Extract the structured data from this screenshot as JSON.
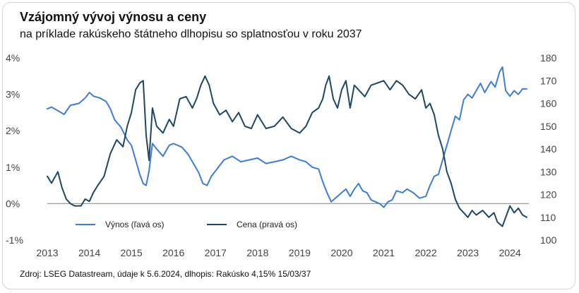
{
  "header": {
    "title": "Vzájomný vývoj výnosu a ceny",
    "subtitle": "na príklade rakúskeho štátneho dlhopisu so splatnosťou v roku 2037"
  },
  "footer": {
    "source": "Zdroj: LSEG Datastream, údaje k 5.6.2024, dlhopis: Rakúsko 4,15% 15/03/37"
  },
  "colors": {
    "yield": "#3b7dd8",
    "price": "#1e4763",
    "zero_line": "#9a9a9a"
  },
  "chart_data": {
    "type": "line",
    "title": "Vzájomný vývoj výnosu a ceny",
    "subtitle": "na príklade rakúskeho štátneho dlhopisu so splatnosťou v roku 2037",
    "x_ticks": [
      "2013",
      "2014",
      "2015",
      "2016",
      "2017",
      "2018",
      "2019",
      "2020",
      "2021",
      "2022",
      "2023",
      "2024"
    ],
    "x_range": [
      2013,
      2024.45
    ],
    "y_left": {
      "range": [
        -1,
        4
      ],
      "ticks": [
        "-1%",
        "0%",
        "1%",
        "2%",
        "3%",
        "4%"
      ]
    },
    "y_right": {
      "range": [
        100,
        180
      ],
      "ticks": [
        "100",
        "110",
        "120",
        "130",
        "140",
        "150",
        "160",
        "170",
        "180"
      ]
    },
    "legend": {
      "placement": "bottom-left",
      "entries": [
        "Výnos (ľavá os)",
        "Cena (pravá os)"
      ]
    },
    "grid": false,
    "series": [
      {
        "name": "Výnos (ľavá os)",
        "axis": "left",
        "x": [
          2013.0,
          2013.1,
          2013.25,
          2013.4,
          2013.55,
          2013.75,
          2013.9,
          2014.0,
          2014.1,
          2014.25,
          2014.4,
          2014.5,
          2014.6,
          2014.75,
          2014.9,
          2015.0,
          2015.1,
          2015.2,
          2015.28,
          2015.35,
          2015.42,
          2015.5,
          2015.6,
          2015.75,
          2015.9,
          2016.0,
          2016.2,
          2016.35,
          2016.5,
          2016.6,
          2016.7,
          2016.8,
          2016.9,
          2017.0,
          2017.2,
          2017.4,
          2017.6,
          2017.8,
          2018.0,
          2018.2,
          2018.4,
          2018.6,
          2018.8,
          2019.0,
          2019.15,
          2019.3,
          2019.45,
          2019.55,
          2019.65,
          2019.75,
          2019.9,
          2020.0,
          2020.1,
          2020.2,
          2020.3,
          2020.4,
          2020.5,
          2020.6,
          2020.7,
          2020.8,
          2020.9,
          2021.0,
          2021.1,
          2021.2,
          2021.3,
          2021.45,
          2021.55,
          2021.7,
          2021.85,
          2022.0,
          2022.1,
          2022.2,
          2022.3,
          2022.4,
          2022.5,
          2022.6,
          2022.7,
          2022.8,
          2022.9,
          2023.0,
          2023.1,
          2023.2,
          2023.3,
          2023.4,
          2023.55,
          2023.65,
          2023.75,
          2023.82,
          2023.9,
          2024.0,
          2024.1,
          2024.2,
          2024.3,
          2024.4
        ],
        "values": [
          2.6,
          2.65,
          2.55,
          2.45,
          2.7,
          2.75,
          2.9,
          3.05,
          2.95,
          2.9,
          2.8,
          2.6,
          2.3,
          2.1,
          1.75,
          1.6,
          1.2,
          0.8,
          0.55,
          0.5,
          0.9,
          1.65,
          1.5,
          1.3,
          1.6,
          1.65,
          1.55,
          1.35,
          1.05,
          0.85,
          0.55,
          0.5,
          0.75,
          0.9,
          1.2,
          1.3,
          1.15,
          1.2,
          1.25,
          1.1,
          1.15,
          1.2,
          1.3,
          1.2,
          1.15,
          1.0,
          0.95,
          0.6,
          0.3,
          0.05,
          0.2,
          0.3,
          0.4,
          0.2,
          0.4,
          0.55,
          0.35,
          0.3,
          0.1,
          0.05,
          0.0,
          -0.1,
          0.05,
          0.1,
          0.35,
          0.3,
          0.4,
          0.3,
          0.15,
          0.2,
          0.5,
          0.75,
          0.8,
          1.2,
          1.6,
          2.0,
          2.4,
          2.3,
          2.85,
          3.0,
          2.9,
          3.1,
          3.3,
          3.05,
          3.35,
          3.2,
          3.6,
          3.75,
          3.1,
          2.95,
          3.1,
          3.0,
          3.15,
          3.15
        ]
      },
      {
        "name": "Cena (pravá os)",
        "axis": "right",
        "x": [
          2013.0,
          2013.1,
          2013.25,
          2013.35,
          2013.45,
          2013.55,
          2013.65,
          2013.8,
          2013.9,
          2014.0,
          2014.1,
          2014.2,
          2014.35,
          2014.5,
          2014.65,
          2014.8,
          2014.9,
          2015.0,
          2015.1,
          2015.2,
          2015.28,
          2015.35,
          2015.42,
          2015.5,
          2015.6,
          2015.75,
          2015.9,
          2016.0,
          2016.15,
          2016.3,
          2016.45,
          2016.55,
          2016.65,
          2016.75,
          2016.85,
          2016.95,
          2017.1,
          2017.25,
          2017.4,
          2017.55,
          2017.7,
          2017.85,
          2018.0,
          2018.2,
          2018.4,
          2018.6,
          2018.8,
          2019.0,
          2019.15,
          2019.3,
          2019.45,
          2019.55,
          2019.62,
          2019.7,
          2019.8,
          2019.9,
          2020.0,
          2020.1,
          2020.15,
          2020.2,
          2020.3,
          2020.4,
          2020.55,
          2020.7,
          2020.85,
          2021.0,
          2021.15,
          2021.3,
          2021.45,
          2021.6,
          2021.75,
          2021.9,
          2022.0,
          2022.1,
          2022.2,
          2022.3,
          2022.4,
          2022.5,
          2022.6,
          2022.7,
          2022.8,
          2022.9,
          2023.0,
          2023.1,
          2023.2,
          2023.35,
          2023.5,
          2023.62,
          2023.7,
          2023.82,
          2023.9,
          2024.0,
          2024.1,
          2024.2,
          2024.3,
          2024.4
        ],
        "values": [
          128,
          125,
          130,
          123,
          118,
          116,
          115,
          115,
          118,
          117,
          121,
          124,
          128,
          138,
          144,
          141,
          150,
          156,
          166,
          169,
          170,
          146,
          135,
          158,
          150,
          147,
          153,
          150,
          162,
          163,
          158,
          162,
          168,
          172,
          168,
          160,
          155,
          157,
          152,
          156,
          150,
          149,
          155,
          149,
          150,
          154,
          149,
          147,
          150,
          156,
          158,
          162,
          168,
          172,
          162,
          158,
          166,
          170,
          164,
          158,
          168,
          166,
          163,
          168,
          169,
          170,
          166,
          170,
          168,
          164,
          162,
          166,
          158,
          160,
          155,
          146,
          140,
          130,
          125,
          118,
          114,
          112,
          110,
          113,
          111,
          113,
          110,
          112,
          108,
          106,
          110,
          115,
          112,
          114,
          111,
          110
        ]
      }
    ]
  }
}
